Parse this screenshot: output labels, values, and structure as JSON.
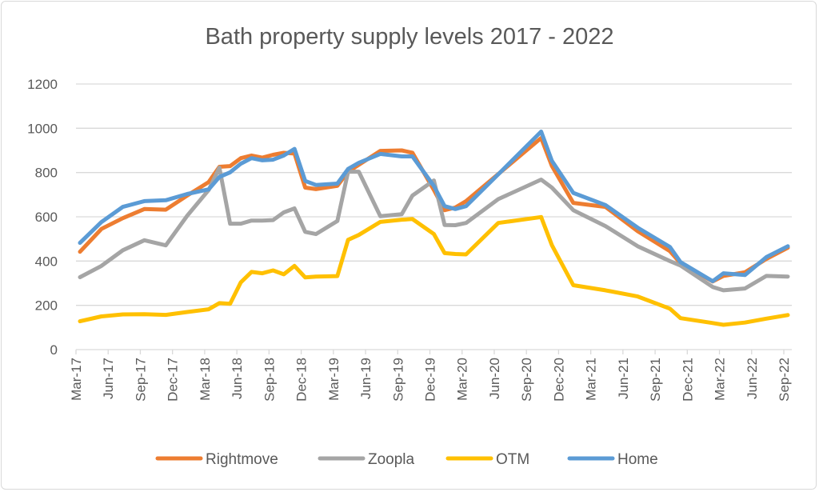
{
  "chart_data": {
    "type": "line",
    "title": "Bath property supply levels 2017 - 2022",
    "xlabel": "",
    "ylabel": "",
    "ylim": [
      0,
      1200
    ],
    "yticks": [
      "0",
      "200",
      "400",
      "600",
      "800",
      "1000",
      "1200"
    ],
    "xlim": [
      "2017-03",
      "2022-09"
    ],
    "xtick_labels": [
      "Mar-17",
      "Jun-17",
      "Sep-17",
      "Dec-17",
      "Mar-18",
      "Jun-18",
      "Sep-18",
      "Dec-18",
      "Mar-19",
      "Jun-19",
      "Sep-19",
      "Dec-19",
      "Mar-20",
      "Jun-20",
      "Sep-20",
      "Dec-20",
      "Mar-21",
      "Jun-21",
      "Sep-21",
      "Dec-21",
      "Mar-22",
      "Jun-22",
      "Sep-22"
    ],
    "grid": "horizontal",
    "legend_position": "bottom",
    "x": [
      "2017-03",
      "2017-05",
      "2017-07",
      "2017-09",
      "2017-11",
      "2018-01",
      "2018-03",
      "2018-04",
      "2018-05",
      "2018-06",
      "2018-07",
      "2018-08",
      "2018-09",
      "2018-10",
      "2018-11",
      "2018-12",
      "2019-01",
      "2019-03",
      "2019-04",
      "2019-05",
      "2019-07",
      "2019-09",
      "2019-10",
      "2019-12",
      "2020-01",
      "2020-02",
      "2020-03",
      "2020-06",
      "2020-10",
      "2020-11",
      "2021-01",
      "2021-04",
      "2021-07",
      "2021-10",
      "2021-11",
      "2022-02",
      "2022-03",
      "2022-05",
      "2022-07",
      "2022-09"
    ],
    "series": [
      {
        "name": "Rightmove",
        "color": "#ED7D31",
        "values": [
          442,
          545,
          594,
          635,
          632,
          696,
          757,
          826,
          829,
          865,
          877,
          867,
          880,
          889,
          886,
          732,
          725,
          740,
          804,
          835,
          898,
          900,
          889,
          721,
          630,
          642,
          671,
          793,
          956,
          830,
          663,
          645,
          535,
          445,
          390,
          308,
          333,
          349,
          410,
          460
        ]
      },
      {
        "name": "Zoopla",
        "color": "#A5A5A5",
        "values": [
          327,
          378,
          449,
          494,
          471,
          605,
          721,
          822,
          569,
          569,
          583,
          583,
          585,
          620,
          638,
          532,
          522,
          581,
          804,
          804,
          603,
          612,
          696,
          764,
          563,
          562,
          572,
          680,
          768,
          732,
          630,
          558,
          467,
          400,
          380,
          283,
          268,
          276,
          333,
          330
        ]
      },
      {
        "name": "OTM",
        "color": "#FFC000",
        "values": [
          128,
          150,
          159,
          160,
          157,
          170,
          182,
          210,
          207,
          304,
          351,
          345,
          358,
          340,
          378,
          326,
          330,
          332,
          496,
          518,
          577,
          587,
          590,
          522,
          436,
          432,
          430,
          572,
          599,
          472,
          291,
          268,
          240,
          185,
          142,
          120,
          112,
          122,
          140,
          156
        ]
      },
      {
        "name": "Home",
        "color": "#5B9BD5",
        "values": [
          482,
          576,
          645,
          671,
          675,
          703,
          724,
          780,
          801,
          840,
          865,
          855,
          858,
          877,
          907,
          762,
          744,
          750,
          816,
          844,
          884,
          873,
          873,
          739,
          648,
          635,
          648,
          792,
          985,
          853,
          708,
          653,
          551,
          464,
          395,
          309,
          345,
          337,
          418,
          467
        ]
      }
    ]
  }
}
